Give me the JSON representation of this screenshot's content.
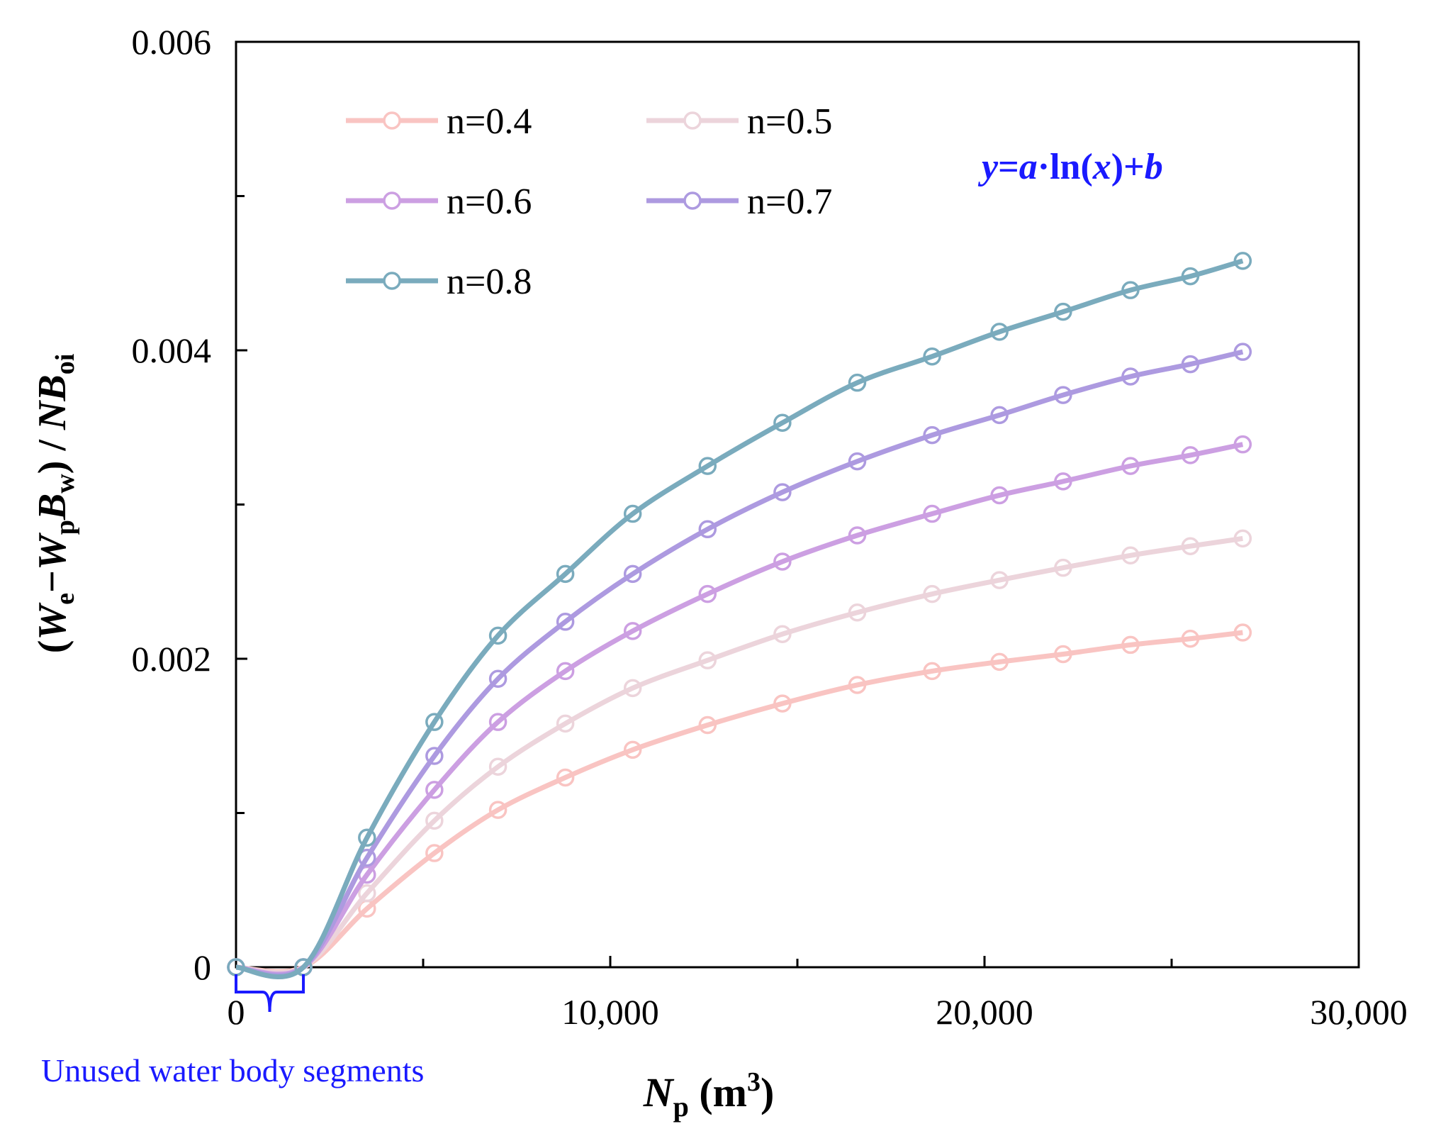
{
  "chart_data": {
    "type": "line",
    "title": "",
    "xlabel": {
      "main": "N",
      "sub": "p",
      "unit_open": " (m",
      "unit_sup": "3",
      "unit_close": ")"
    },
    "ylabel": {
      "p1": "(",
      "p2": "W",
      "p3": "e",
      "p4": "−",
      "p5": "W",
      "p6": "p",
      "p7": "B",
      "p8": "w",
      "p9": ") / ",
      "p10": "NB",
      "p11": "oi"
    },
    "xlim": [
      0,
      30000
    ],
    "ylim": [
      0,
      0.006
    ],
    "x_ticks": [
      {
        "value": 0,
        "label": "0"
      },
      {
        "value": 10000,
        "label": "10,000"
      },
      {
        "value": 20000,
        "label": "20,000"
      },
      {
        "value": 30000,
        "label": "30,000"
      }
    ],
    "x_minor_ticks": [
      5000,
      15000,
      25000
    ],
    "y_ticks": [
      {
        "value": 0,
        "label": "0"
      },
      {
        "value": 0.002,
        "label": "0.002"
      },
      {
        "value": 0.004,
        "label": "0.004"
      },
      {
        "value": 0.006,
        "label": "0.006"
      }
    ],
    "y_minor_ticks": [
      0.001,
      0.003,
      0.005
    ],
    "x": [
      0,
      1800,
      3500,
      5300,
      7000,
      8800,
      10600,
      12600,
      14600,
      16600,
      18600,
      20400,
      22100,
      23900,
      25500,
      26900
    ],
    "series": [
      {
        "name": "n=0.4",
        "color": "#f9c4c2",
        "values": [
          0,
          0,
          0.00038,
          0.00074,
          0.00102,
          0.00123,
          0.00141,
          0.00157,
          0.00171,
          0.00183,
          0.00192,
          0.00198,
          0.00203,
          0.00209,
          0.00213,
          0.00217
        ]
      },
      {
        "name": "n=0.5",
        "color": "#ecd4db",
        "values": [
          0,
          0,
          0.00048,
          0.00095,
          0.0013,
          0.00158,
          0.00181,
          0.00199,
          0.00216,
          0.0023,
          0.00242,
          0.00251,
          0.00259,
          0.00267,
          0.00273,
          0.00278
        ]
      },
      {
        "name": "n=0.6",
        "color": "#cc9fe2",
        "values": [
          0,
          0,
          0.0006,
          0.00115,
          0.00159,
          0.00192,
          0.00218,
          0.00242,
          0.00263,
          0.0028,
          0.00294,
          0.00306,
          0.00315,
          0.00325,
          0.00332,
          0.00339
        ]
      },
      {
        "name": "n=0.7",
        "color": "#ad9ae0",
        "values": [
          0,
          0,
          0.00071,
          0.00137,
          0.00187,
          0.00224,
          0.00255,
          0.00284,
          0.00308,
          0.00328,
          0.00345,
          0.00358,
          0.00371,
          0.00383,
          0.00391,
          0.00399
        ]
      },
      {
        "name": "n=0.8",
        "color": "#7aabbd",
        "values": [
          0,
          0,
          0.00084,
          0.00159,
          0.00215,
          0.00255,
          0.00294,
          0.00325,
          0.00353,
          0.00379,
          0.00396,
          0.00412,
          0.00425,
          0.00439,
          0.00448,
          0.00458
        ]
      }
    ],
    "legend": {
      "position": "top-left",
      "columns": 2
    },
    "formula_annotation": {
      "y": "y",
      "eq": "=",
      "a": "a",
      "dot": "·",
      "ln": "ln(",
      "x": "x",
      "close": ")+",
      "b": "b",
      "color": "#1a1aff"
    },
    "range_annotation": {
      "text": "Unused water body segments",
      "x_range": [
        0,
        1800
      ],
      "color": "#1a1aff"
    },
    "axis_color": "#000000"
  }
}
